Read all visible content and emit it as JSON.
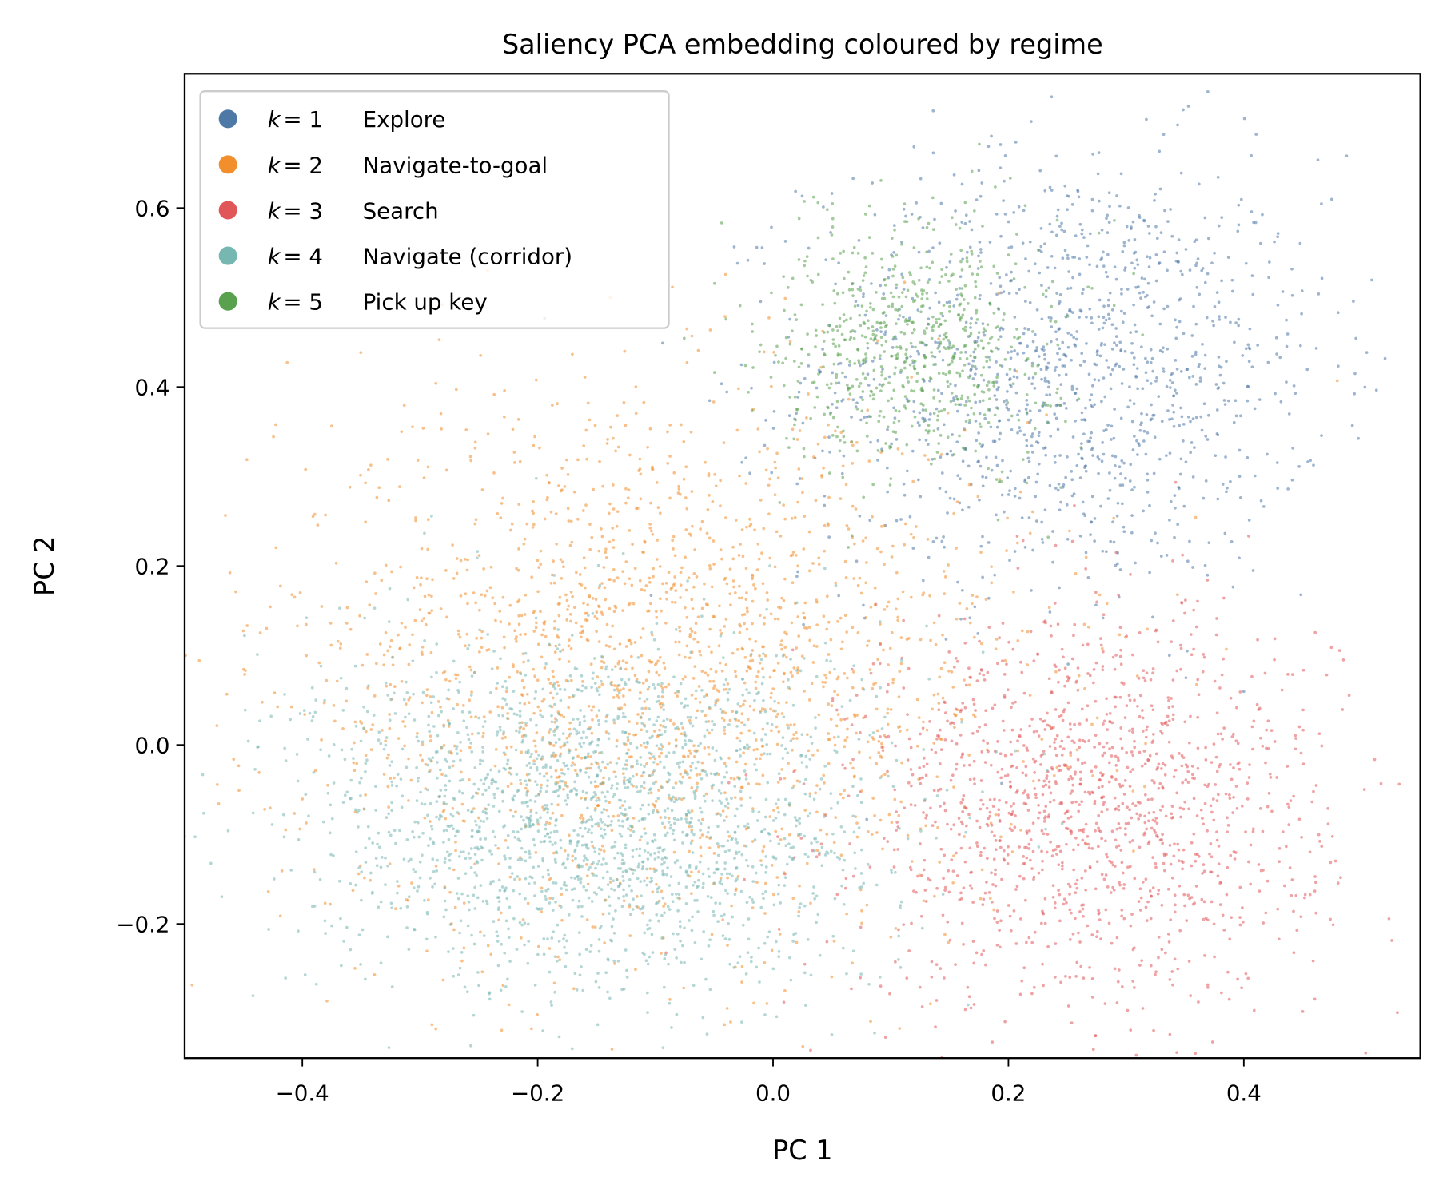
{
  "chart_data": {
    "type": "scatter",
    "title": "Saliency PCA embedding coloured by regime",
    "xlabel": "PC 1",
    "ylabel": "PC 2",
    "xlim": [
      -0.5,
      0.55
    ],
    "ylim": [
      -0.35,
      0.75
    ],
    "xticks": [
      -0.4,
      -0.2,
      0.0,
      0.2,
      0.4
    ],
    "xtick_labels": [
      "−0.4",
      "−0.2",
      "0.0",
      "0.2",
      "0.4"
    ],
    "yticks": [
      -0.2,
      0.0,
      0.2,
      0.4,
      0.6
    ],
    "ytick_labels": [
      "−0.2",
      "0.0",
      "0.2",
      "0.4",
      "0.6"
    ],
    "grid": false,
    "legend_position": "top-left",
    "series": [
      {
        "name": "k = 1  Explore",
        "k": "k",
        "eq": "= 1",
        "label": "Explore",
        "color": "#4e79a7",
        "center": [
          0.25,
          0.42
        ],
        "spread": [
          0.11,
          0.12
        ]
      },
      {
        "name": "k = 2  Navigate-to-goal",
        "k": "k",
        "eq": "= 2",
        "label": "Navigate-to-goal",
        "color": "#f28e2b",
        "center": [
          -0.1,
          0.08
        ],
        "spread": [
          0.16,
          0.15
        ]
      },
      {
        "name": "k = 3  Search",
        "k": "k",
        "eq": "= 3",
        "label": "Search",
        "color": "#e15759",
        "center": [
          0.27,
          -0.07
        ],
        "spread": [
          0.1,
          0.11
        ]
      },
      {
        "name": "k = 4  Navigate (corridor)",
        "k": "k",
        "eq": "= 4",
        "label": "Navigate (corridor)",
        "color": "#76b7b2",
        "center": [
          -0.15,
          -0.08
        ],
        "spread": [
          0.12,
          0.1
        ]
      },
      {
        "name": "k = 5  Pick up key",
        "k": "k",
        "eq": "= 5",
        "label": "Pick up key",
        "color": "#59a14f",
        "center": [
          0.12,
          0.45
        ],
        "spread": [
          0.06,
          0.07
        ]
      }
    ]
  }
}
